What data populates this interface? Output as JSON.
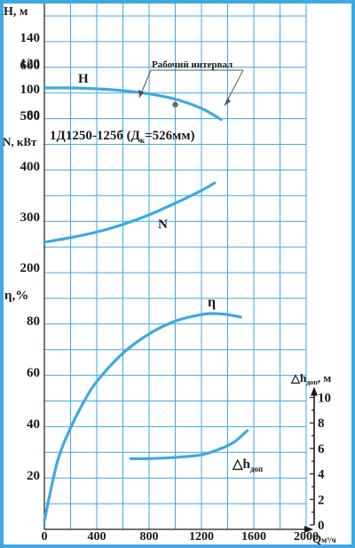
{
  "chart_data": {
    "type": "line",
    "title": "1Д1250-125б (Дк=526мм)",
    "x": {
      "label": "Q, м³/ч",
      "label_main": "Q",
      "label_unit": "м³/ч",
      "ticks": [
        "0",
        "400",
        "800",
        "1200",
        "1600",
        "2000"
      ],
      "range": [
        0,
        2000
      ]
    },
    "y_axes": {
      "H": {
        "label": "H, м",
        "ticks": [
          "140",
          "120",
          "100",
          "80"
        ],
        "range": [
          70,
          150
        ]
      },
      "N": {
        "label": "N, кВт",
        "ticks": [
          "600",
          "500",
          "400",
          "300",
          "200"
        ],
        "range": [
          150,
          650
        ]
      },
      "eta": {
        "label": "η,%",
        "ticks": [
          "80",
          "60",
          "40",
          "20"
        ],
        "range": [
          0,
          90
        ]
      },
      "npsh": {
        "label": "△hдоп, м",
        "label_main": "△h",
        "label_sub": "доп",
        "label_unit": ", м",
        "ticks": [
          "10",
          "8",
          "6",
          "4",
          "2",
          "0"
        ],
        "range": [
          0,
          10
        ]
      }
    },
    "series": [
      {
        "name": "H",
        "axis": "H",
        "x": [
          0,
          200,
          400,
          600,
          800,
          1000,
          1200,
          1350
        ],
        "y": [
          100,
          100,
          99.3,
          97.9,
          95.4,
          91.3,
          84.1,
          75.5
        ]
      },
      {
        "name": "N",
        "axis": "N",
        "x": [
          0,
          200,
          400,
          600,
          800,
          1000,
          1200,
          1300
        ],
        "y": [
          248,
          257,
          268,
          283,
          302,
          325,
          350,
          365
        ]
      },
      {
        "name": "η",
        "axis": "eta",
        "x": [
          0,
          100,
          200,
          300,
          400,
          600,
          800,
          1000,
          1200,
          1300,
          1400,
          1500
        ],
        "y": [
          2,
          25,
          38,
          48,
          56,
          67,
          74.5,
          79.5,
          82,
          82.4,
          82,
          81
        ]
      },
      {
        "name": "△hдоп",
        "label_main": "△h",
        "label_sub": "доп",
        "axis": "npsh",
        "x": [
          660,
          800,
          1000,
          1200,
          1350,
          1450,
          1550
        ],
        "y": [
          5.2,
          5.2,
          5.3,
          5.5,
          6.0,
          6.5,
          7.4
        ]
      }
    ],
    "annotations": {
      "operating_range": "Рабочий интервал",
      "marker": {
        "x": 1000,
        "y": 87
      }
    },
    "grid": true
  },
  "colors": {
    "curve": "#3fa9e0",
    "grid": "#3fa9e0",
    "text": "#1a1a1a",
    "marker": "#6b6b6b"
  }
}
